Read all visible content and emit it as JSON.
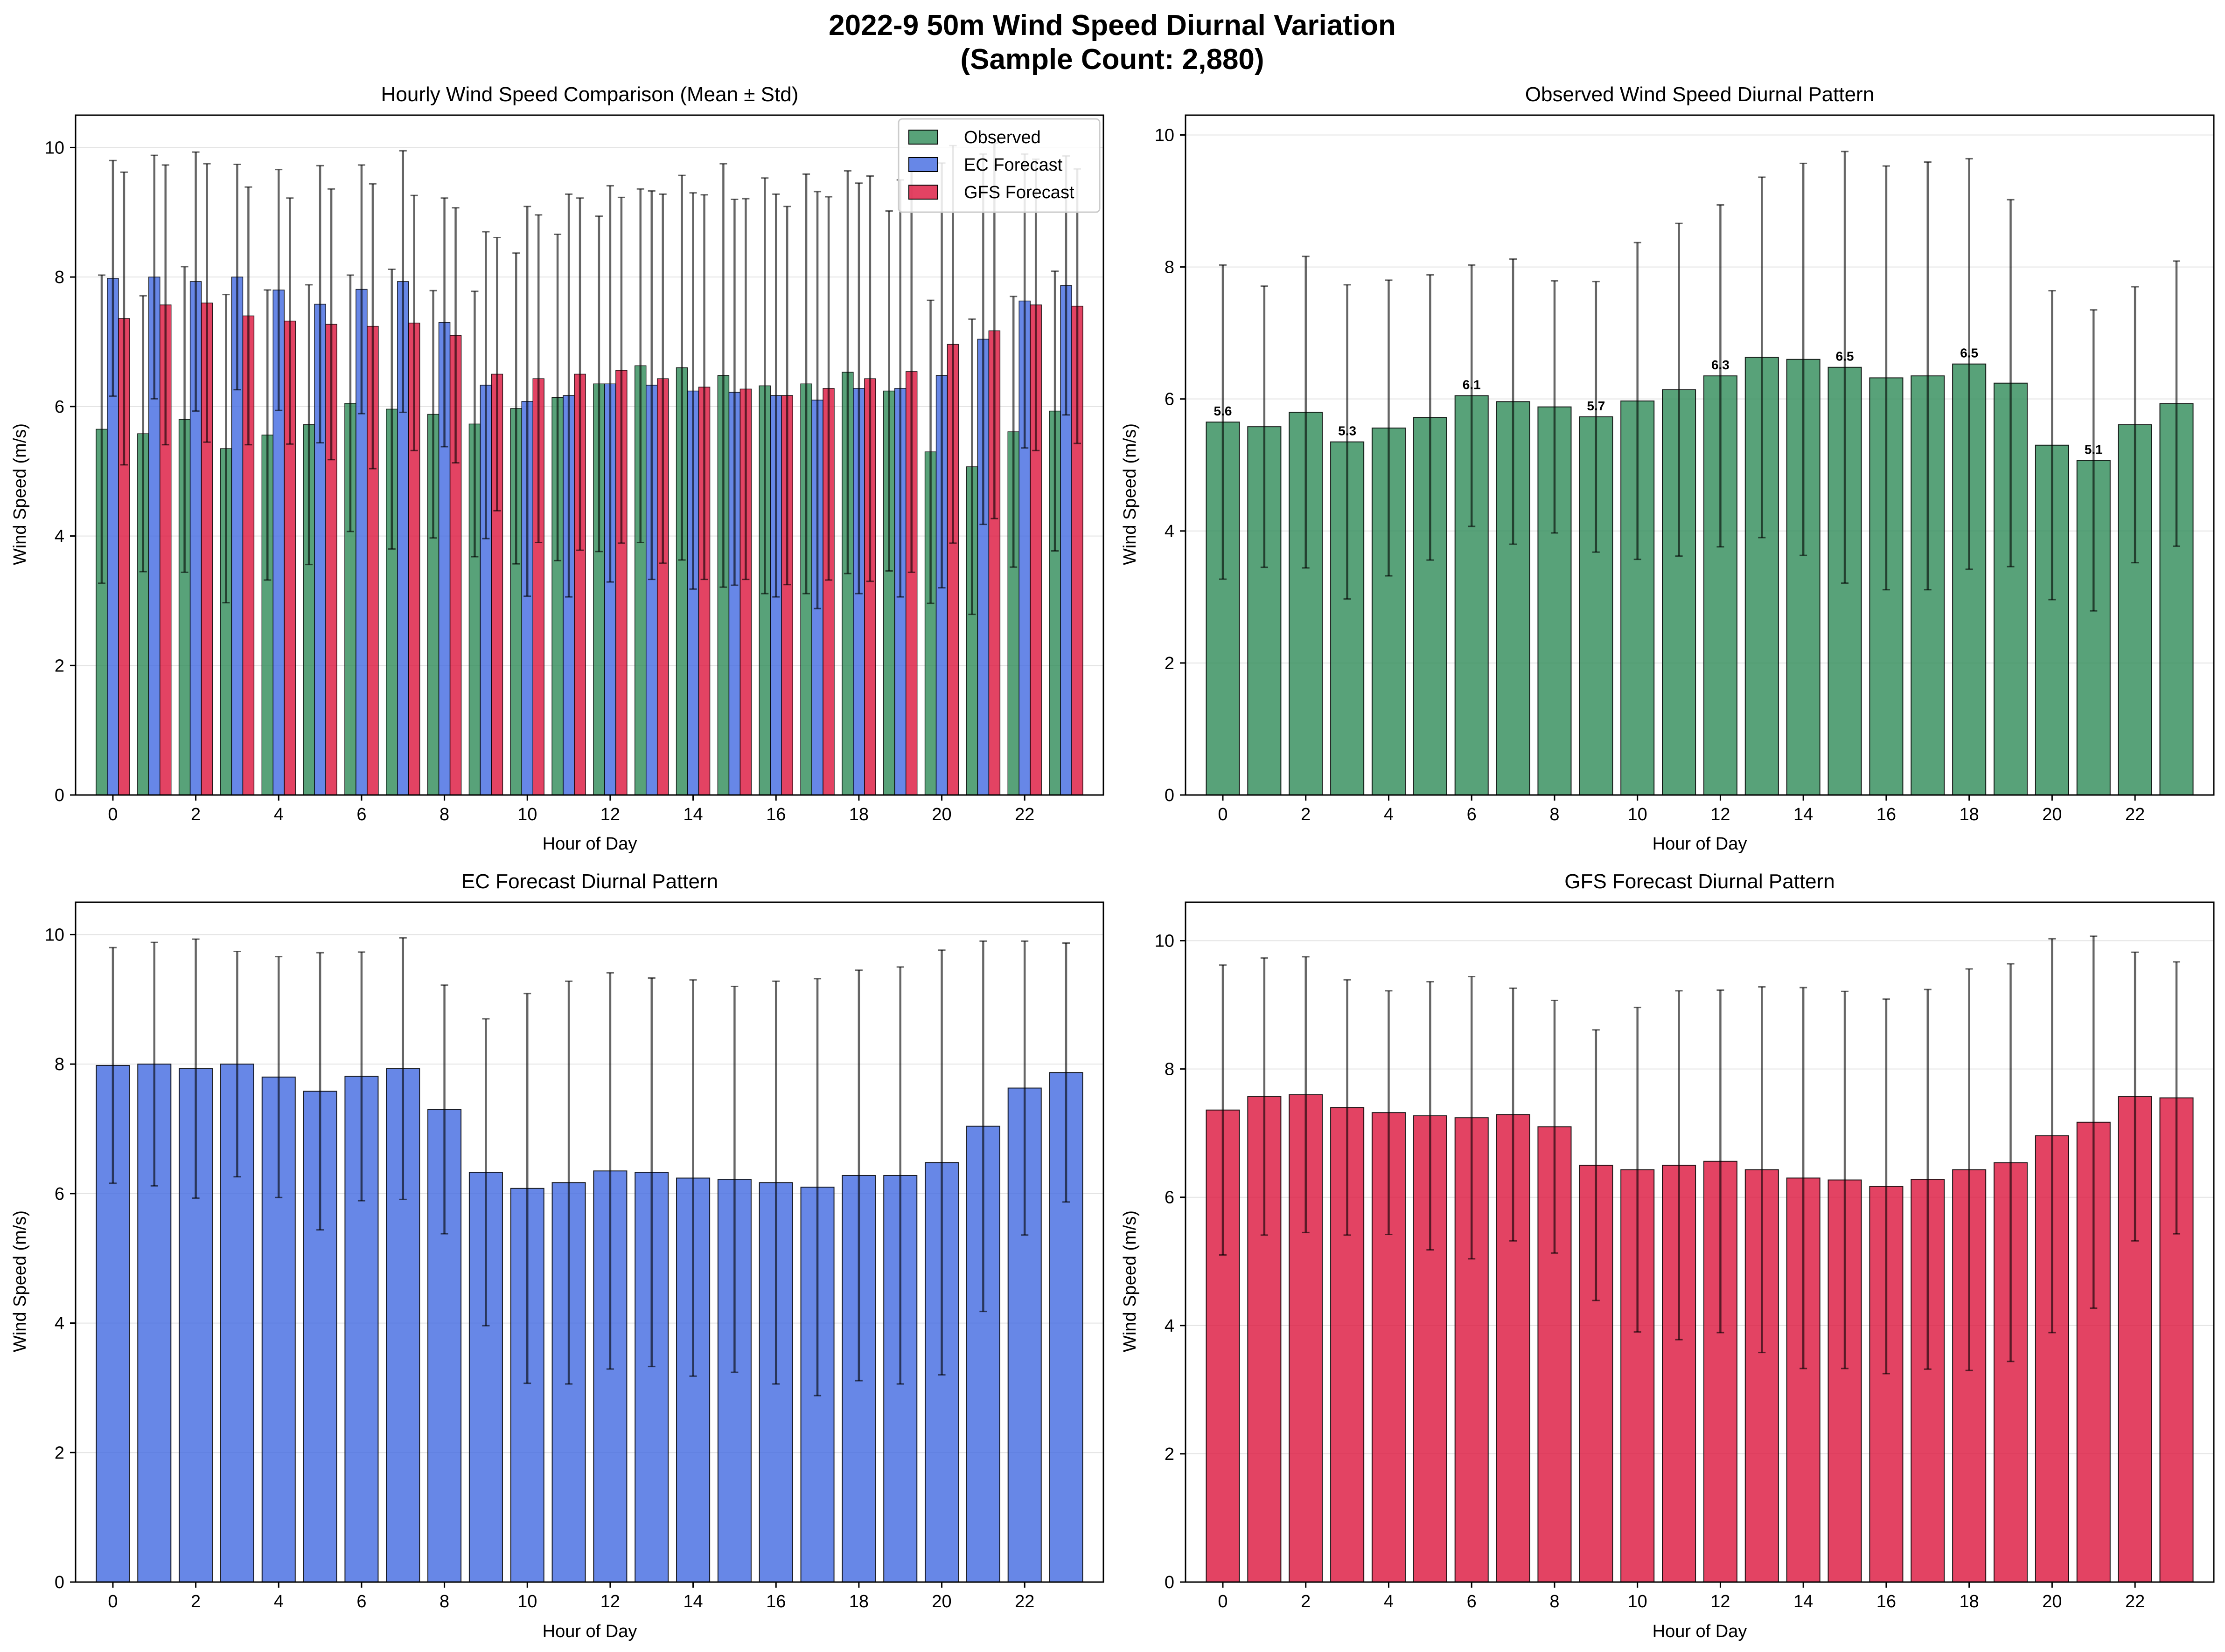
{
  "figure": {
    "title_line1": "2022-9 50m Wind Speed Diurnal Variation",
    "title_line2": "(Sample Count: 2,880)"
  },
  "colors": {
    "observed": "#2E8B57",
    "ec": "#4169E1",
    "gfs": "#DC143C"
  },
  "chart_data": [
    {
      "type": "bar",
      "title": "Hourly Wind Speed Comparison (Mean ± Std)",
      "xlabel": "Hour of Day",
      "ylabel": "Wind Speed (m/s)",
      "ylim": [
        0,
        10.5
      ],
      "grid": true,
      "legend": "top-right",
      "categories": [
        0,
        1,
        2,
        3,
        4,
        5,
        6,
        7,
        8,
        9,
        10,
        11,
        12,
        13,
        14,
        15,
        16,
        17,
        18,
        19,
        20,
        21,
        22,
        23
      ],
      "x_ticks": [
        0,
        2,
        4,
        6,
        8,
        10,
        12,
        14,
        16,
        18,
        20,
        22
      ],
      "y_ticks": [
        0,
        2,
        4,
        6,
        8,
        10
      ],
      "series": [
        {
          "name": "Observed",
          "color_key": "observed",
          "values": [
            5.65,
            5.58,
            5.8,
            5.35,
            5.56,
            5.72,
            6.05,
            5.96,
            5.88,
            5.73,
            5.97,
            6.14,
            6.35,
            6.63,
            6.6,
            6.48,
            6.32,
            6.35,
            6.53,
            6.24,
            5.3,
            5.07,
            5.61,
            5.93
          ],
          "std": [
            2.38,
            2.13,
            2.36,
            2.38,
            2.24,
            2.16,
            1.98,
            2.16,
            1.91,
            2.05,
            2.4,
            2.52,
            2.59,
            2.73,
            2.97,
            3.27,
            3.21,
            3.24,
            3.11,
            2.78,
            2.34,
            2.28,
            2.09,
            2.16
          ]
        },
        {
          "name": "EC Forecast",
          "color_key": "ec",
          "values": [
            7.98,
            8.0,
            7.93,
            8.0,
            7.8,
            7.58,
            7.81,
            7.93,
            7.3,
            6.33,
            6.08,
            6.17,
            6.35,
            6.33,
            6.24,
            6.22,
            6.17,
            6.1,
            6.28,
            6.28,
            6.48,
            7.04,
            7.63,
            7.87
          ],
          "std": [
            1.82,
            1.88,
            2.0,
            1.74,
            1.86,
            2.14,
            1.92,
            2.02,
            1.92,
            2.37,
            3.01,
            3.11,
            3.06,
            3.0,
            3.06,
            2.98,
            3.11,
            3.22,
            3.17,
            3.22,
            3.28,
            2.86,
            2.27,
            2.0
          ]
        },
        {
          "name": "GFS Forecast",
          "color_key": "gfs",
          "values": [
            7.36,
            7.57,
            7.6,
            7.4,
            7.32,
            7.27,
            7.24,
            7.29,
            7.1,
            6.5,
            6.43,
            6.5,
            6.56,
            6.43,
            6.3,
            6.27,
            6.17,
            6.28,
            6.43,
            6.54,
            6.96,
            7.17,
            7.57,
            7.55
          ],
          "std": [
            2.26,
            2.16,
            2.15,
            1.99,
            1.9,
            2.09,
            2.2,
            1.97,
            1.97,
            2.11,
            2.53,
            2.72,
            2.67,
            2.85,
            2.97,
            2.94,
            2.92,
            2.96,
            3.13,
            3.1,
            3.07,
            2.9,
            2.25,
            2.12
          ]
        }
      ]
    },
    {
      "type": "bar",
      "title": "Observed Wind Speed Diurnal Pattern",
      "xlabel": "Hour of Day",
      "ylabel": "Wind Speed (m/s)",
      "ylim": [
        0,
        10.3
      ],
      "grid": true,
      "categories": [
        0,
        1,
        2,
        3,
        4,
        5,
        6,
        7,
        8,
        9,
        10,
        11,
        12,
        13,
        14,
        15,
        16,
        17,
        18,
        19,
        20,
        21,
        22,
        23
      ],
      "x_ticks": [
        0,
        2,
        4,
        6,
        8,
        10,
        12,
        14,
        16,
        18,
        20,
        22
      ],
      "y_ticks": [
        0,
        2,
        4,
        6,
        8,
        10
      ],
      "series": [
        {
          "name": "Observed",
          "color_key": "observed",
          "values": [
            5.65,
            5.58,
            5.8,
            5.35,
            5.56,
            5.72,
            6.05,
            5.96,
            5.88,
            5.73,
            5.97,
            6.14,
            6.35,
            6.63,
            6.6,
            6.48,
            6.32,
            6.35,
            6.53,
            6.24,
            5.3,
            5.07,
            5.61,
            5.93
          ],
          "std": [
            2.38,
            2.13,
            2.36,
            2.38,
            2.24,
            2.16,
            1.98,
            2.16,
            1.91,
            2.05,
            2.4,
            2.52,
            2.59,
            2.73,
            2.97,
            3.27,
            3.21,
            3.24,
            3.11,
            2.78,
            2.34,
            2.28,
            2.09,
            2.16
          ]
        }
      ],
      "annotations": [
        {
          "x": 0,
          "text": "5.6"
        },
        {
          "x": 3,
          "text": "5.3"
        },
        {
          "x": 6,
          "text": "6.1"
        },
        {
          "x": 9,
          "text": "5.7"
        },
        {
          "x": 12,
          "text": "6.3"
        },
        {
          "x": 15,
          "text": "6.5"
        },
        {
          "x": 18,
          "text": "6.5"
        },
        {
          "x": 21,
          "text": "5.1"
        }
      ]
    },
    {
      "type": "bar",
      "title": "EC Forecast Diurnal Pattern",
      "xlabel": "Hour of Day",
      "ylabel": "Wind Speed (m/s)",
      "ylim": [
        0,
        10.5
      ],
      "grid": true,
      "categories": [
        0,
        1,
        2,
        3,
        4,
        5,
        6,
        7,
        8,
        9,
        10,
        11,
        12,
        13,
        14,
        15,
        16,
        17,
        18,
        19,
        20,
        21,
        22,
        23
      ],
      "x_ticks": [
        0,
        2,
        4,
        6,
        8,
        10,
        12,
        14,
        16,
        18,
        20,
        22
      ],
      "y_ticks": [
        0,
        2,
        4,
        6,
        8,
        10
      ],
      "series": [
        {
          "name": "EC Forecast",
          "color_key": "ec",
          "values": [
            7.98,
            8.0,
            7.93,
            8.0,
            7.8,
            7.58,
            7.81,
            7.93,
            7.3,
            6.33,
            6.08,
            6.17,
            6.35,
            6.33,
            6.24,
            6.22,
            6.17,
            6.1,
            6.28,
            6.28,
            6.48,
            7.04,
            7.63,
            7.87
          ],
          "std": [
            1.82,
            1.88,
            2.0,
            1.74,
            1.86,
            2.14,
            1.92,
            2.02,
            1.92,
            2.37,
            3.01,
            3.11,
            3.06,
            3.0,
            3.06,
            2.98,
            3.11,
            3.22,
            3.17,
            3.22,
            3.28,
            2.86,
            2.27,
            2.0
          ]
        }
      ]
    },
    {
      "type": "bar",
      "title": "GFS Forecast Diurnal Pattern",
      "xlabel": "Hour of Day",
      "ylabel": "Wind Speed (m/s)",
      "ylim": [
        0,
        10.6
      ],
      "grid": true,
      "categories": [
        0,
        1,
        2,
        3,
        4,
        5,
        6,
        7,
        8,
        9,
        10,
        11,
        12,
        13,
        14,
        15,
        16,
        17,
        18,
        19,
        20,
        21,
        22,
        23
      ],
      "x_ticks": [
        0,
        2,
        4,
        6,
        8,
        10,
        12,
        14,
        16,
        18,
        20,
        22
      ],
      "y_ticks": [
        0,
        2,
        4,
        6,
        8,
        10
      ],
      "series": [
        {
          "name": "GFS Forecast",
          "color_key": "gfs",
          "values": [
            7.36,
            7.57,
            7.6,
            7.4,
            7.32,
            7.27,
            7.24,
            7.29,
            7.1,
            6.5,
            6.43,
            6.5,
            6.56,
            6.43,
            6.3,
            6.27,
            6.17,
            6.28,
            6.43,
            6.54,
            6.96,
            7.17,
            7.57,
            7.55
          ],
          "std": [
            2.26,
            2.16,
            2.15,
            1.99,
            1.9,
            2.09,
            2.2,
            1.97,
            1.97,
            2.11,
            2.53,
            2.72,
            2.67,
            2.85,
            2.97,
            2.94,
            2.92,
            2.96,
            3.13,
            3.1,
            3.07,
            2.9,
            2.25,
            2.12
          ]
        }
      ]
    }
  ]
}
